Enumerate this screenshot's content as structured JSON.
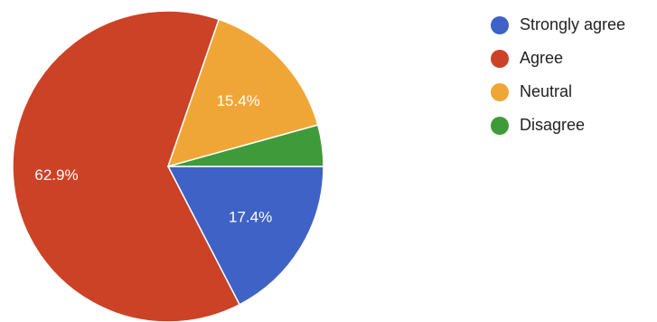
{
  "chart_data": {
    "type": "pie",
    "categories": [
      "Strongly agree",
      "Agree",
      "Neutral",
      "Disagree"
    ],
    "values": [
      17.4,
      62.9,
      15.4,
      4.3
    ],
    "data_labels": [
      "17.4%",
      "62.9%",
      "15.4%",
      ""
    ],
    "colors": [
      "#3e62c6",
      "#cc4226",
      "#f0a636",
      "#3f9a3a"
    ],
    "legend_position": "right",
    "start_angle": "3 o'clock",
    "direction": "clockwise"
  }
}
